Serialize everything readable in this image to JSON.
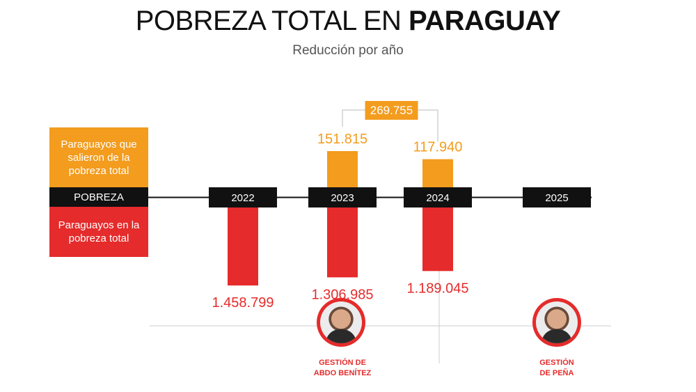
{
  "header": {
    "title_main": "POBREZA TOTAL EN ",
    "title_bold": "PARAGUAY",
    "subtitle": "Reducción por año"
  },
  "legend": {
    "exit_label": "Paraguayos que salieron de la pobreza total",
    "axis_label": "POBREZA",
    "in_label": "Paraguayos en la pobreza total"
  },
  "governments": [
    {
      "label_line1": "GESTIÓN DE",
      "label_line2": "ABDO BENÍTEZ",
      "avatar_icon": "person-portrait-icon"
    },
    {
      "label_line1": "GESTIÓN",
      "label_line2": "DE PEÑA",
      "avatar_icon": "person-portrait-icon"
    }
  ],
  "colors": {
    "exit": "#f39c1e",
    "in_poverty": "#e52b2b",
    "axis": "#111111",
    "bracket": "#bbbbbb"
  },
  "chart_data": {
    "type": "bar",
    "categories": [
      "2022",
      "2023",
      "2024",
      "2025"
    ],
    "series": [
      {
        "name": "Paraguayos que salieron de la pobreza total",
        "values": [
          null,
          151815,
          117940,
          null
        ]
      },
      {
        "name": "Paraguayos en la pobreza total",
        "values": [
          1458799,
          1306985,
          1189045,
          null
        ]
      }
    ],
    "value_labels": {
      "exit": [
        "",
        "151.815",
        "117.940",
        ""
      ],
      "in_poverty": [
        "1.458.799",
        "1.306.985",
        "1.189.045",
        ""
      ]
    },
    "total_exit_label": "269.755",
    "total_exit_value": 269755
  }
}
